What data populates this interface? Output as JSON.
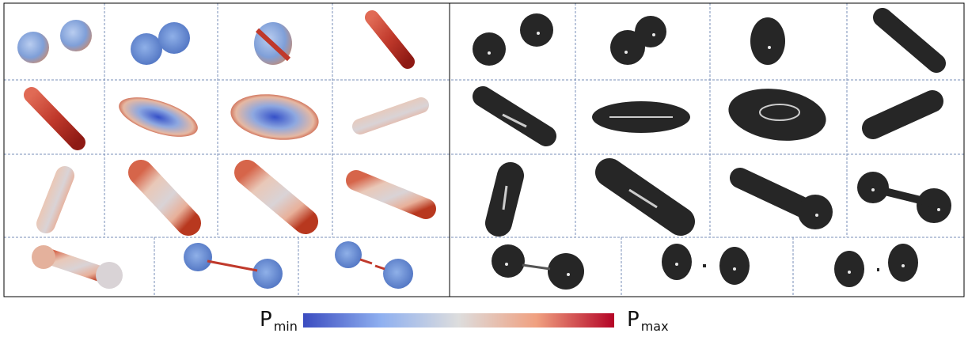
{
  "colorbar": {
    "min_label": {
      "symbol": "P",
      "subscript": "min"
    },
    "max_label": {
      "symbol": "P",
      "subscript": "max"
    }
  }
}
